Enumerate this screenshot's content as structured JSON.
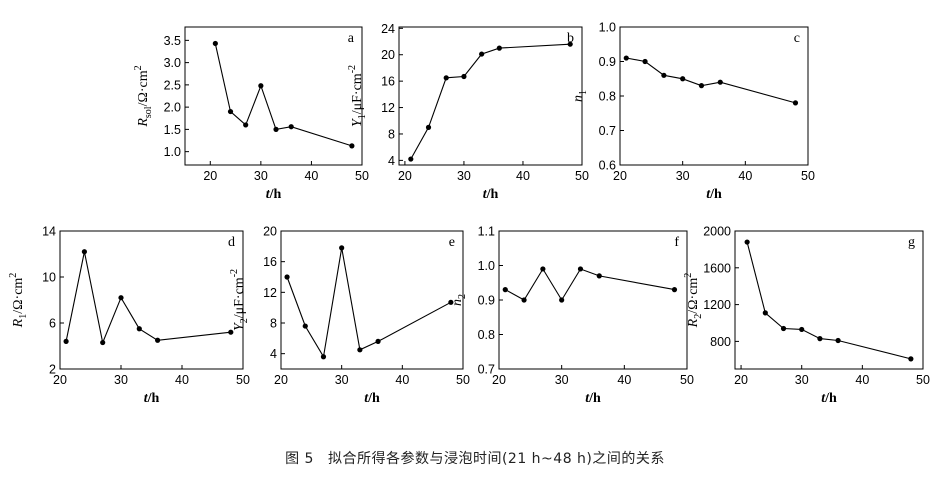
{
  "figure": {
    "caption_number": "图 5",
    "caption_text": "拟合所得各参数与浸泡时间(21 h~48 h)之间的关系"
  },
  "chart_data": [
    {
      "type": "line",
      "letter": "a",
      "ylabel_main": "R",
      "ylabel_sub": "sol",
      "ylabel_rest": "/Ω·cm",
      "ylabel_sup": "2",
      "xlabel_italic": "t",
      "xlabel_rest": "/h",
      "xlim": [
        15,
        50
      ],
      "ylim": [
        0.7,
        3.8
      ],
      "xticks": [
        20,
        30,
        40,
        50
      ],
      "yticks": [
        1.0,
        1.5,
        2.0,
        2.5,
        3.0,
        3.5
      ],
      "ytick_labels": [
        "1.0",
        "1.5",
        "2.0",
        "2.5",
        "3.0",
        "3.5"
      ],
      "x": [
        21,
        24,
        27,
        30,
        33,
        36,
        48
      ],
      "y": [
        3.43,
        1.9,
        1.6,
        2.48,
        1.5,
        1.56,
        1.13
      ]
    },
    {
      "type": "line",
      "letter": "b",
      "ylabel_main": "Y",
      "ylabel_sub": "1",
      "ylabel_rest": "/μF·cm",
      "ylabel_sup": "-2",
      "xlabel_italic": "t",
      "xlabel_rest": "/h",
      "xlim": [
        19,
        50
      ],
      "ylim": [
        3.3,
        24.2
      ],
      "xticks": [
        20,
        30,
        40,
        50
      ],
      "yticks": [
        4,
        8,
        12,
        16,
        20,
        24
      ],
      "ytick_labels": [
        "4",
        "8",
        "12",
        "16",
        "20",
        "24"
      ],
      "x": [
        21,
        24,
        27,
        30,
        33,
        36,
        48
      ],
      "y": [
        4.2,
        9.0,
        16.5,
        16.7,
        20.1,
        21.0,
        21.6
      ]
    },
    {
      "type": "line",
      "letter": "c",
      "ylabel_main": "n",
      "ylabel_sub": "1",
      "ylabel_rest": "",
      "ylabel_sup": "",
      "xlabel_italic": "t",
      "xlabel_rest": "/h",
      "xlim": [
        20,
        50
      ],
      "ylim": [
        0.6,
        1.0
      ],
      "xticks": [
        20,
        30,
        40,
        50
      ],
      "yticks": [
        0.6,
        0.7,
        0.8,
        0.9,
        1.0
      ],
      "ytick_labels": [
        "0.6",
        "0.7",
        "0.8",
        "0.9",
        "1.0"
      ],
      "x": [
        21,
        24,
        27,
        30,
        33,
        36,
        48
      ],
      "y": [
        0.91,
        0.9,
        0.86,
        0.85,
        0.83,
        0.84,
        0.78
      ]
    },
    {
      "type": "line",
      "letter": "d",
      "ylabel_main": "R",
      "ylabel_sub": "1",
      "ylabel_rest": "/Ω·cm",
      "ylabel_sup": "2",
      "xlabel_italic": "t",
      "xlabel_rest": "/h",
      "xlim": [
        20,
        50
      ],
      "ylim": [
        2,
        14
      ],
      "xticks": [
        20,
        30,
        40,
        50
      ],
      "yticks": [
        2,
        6,
        10,
        14
      ],
      "ytick_labels": [
        "2",
        "6",
        "10",
        "14"
      ],
      "x": [
        21,
        24,
        27,
        30,
        33,
        36,
        48
      ],
      "y": [
        4.4,
        12.2,
        4.3,
        8.2,
        5.5,
        4.5,
        5.2
      ]
    },
    {
      "type": "line",
      "letter": "e",
      "ylabel_main": "Y",
      "ylabel_sub": "2",
      "ylabel_rest": "/μF·cm",
      "ylabel_sup": "-2",
      "xlabel_italic": "t",
      "xlabel_rest": "/h",
      "xlim": [
        20,
        50
      ],
      "ylim": [
        2,
        20
      ],
      "xticks": [
        20,
        30,
        40,
        50
      ],
      "yticks": [
        4,
        8,
        12,
        16,
        20
      ],
      "ytick_labels": [
        "4",
        "8",
        "12",
        "16",
        "20"
      ],
      "x": [
        21,
        24,
        27,
        30,
        33,
        36,
        48
      ],
      "y": [
        14.0,
        7.6,
        3.6,
        17.8,
        4.5,
        5.6,
        10.7
      ]
    },
    {
      "type": "line",
      "letter": "f",
      "ylabel_main": "n",
      "ylabel_sub": "2",
      "ylabel_rest": "",
      "ylabel_sup": "",
      "xlabel_italic": "t",
      "xlabel_rest": "/h",
      "xlim": [
        20,
        50
      ],
      "ylim": [
        0.7,
        1.1
      ],
      "xticks": [
        20,
        30,
        40,
        50
      ],
      "yticks": [
        0.7,
        0.8,
        0.9,
        1.0,
        1.1
      ],
      "ytick_labels": [
        "0.7",
        "0.8",
        "0.9",
        "1.0",
        "1.1"
      ],
      "x": [
        21,
        24,
        27,
        30,
        33,
        36,
        48
      ],
      "y": [
        0.93,
        0.9,
        0.99,
        0.9,
        0.99,
        0.97,
        0.93
      ]
    },
    {
      "type": "line",
      "letter": "g",
      "ylabel_main": "R",
      "ylabel_sub": "2",
      "ylabel_rest": "/Ω·cm",
      "ylabel_sup": "2",
      "xlabel_italic": "t",
      "xlabel_rest": "/h",
      "xlim": [
        19,
        50
      ],
      "ylim": [
        500,
        2000
      ],
      "xticks": [
        20,
        30,
        40,
        50
      ],
      "yticks": [
        800,
        1200,
        1600,
        2000
      ],
      "ytick_labels": [
        "800",
        "1200",
        "1600",
        "2000"
      ],
      "x": [
        21,
        24,
        27,
        30,
        33,
        36,
        48
      ],
      "y": [
        1880,
        1110,
        940,
        930,
        830,
        810,
        610
      ]
    }
  ]
}
